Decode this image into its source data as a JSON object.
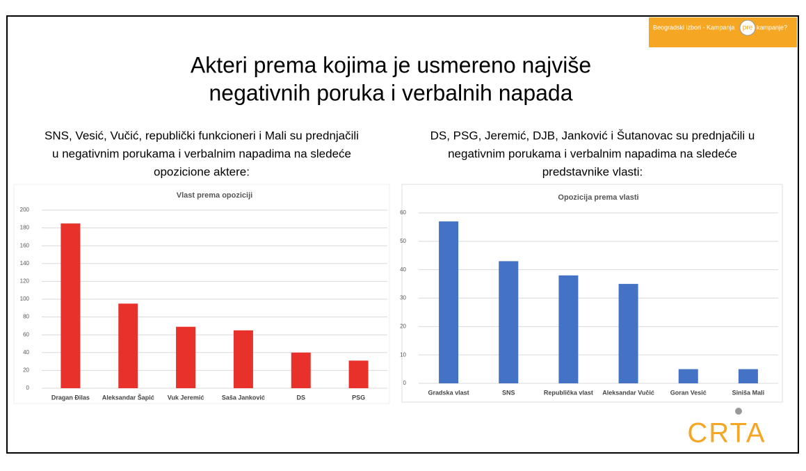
{
  "slide": {
    "title": [
      "Akteri prema kojima je usmereno najviše",
      "negativnih poruka i verbalnih napada"
    ],
    "banner": [
      "Beogradski izbori - Kampanja",
      "pre",
      "kampanje?"
    ],
    "left_caption": [
      "SNS, Vesić, Vučić, republički funkcioneri i Mali su prednjačili",
      "u negativnim porukama i verbalnim napadima na sledeće",
      "opozicione aktere:"
    ],
    "right_caption": [
      "DS, PSG, Jeremić, DJB, Janković i  Šutanovac su prednjačili u",
      "negativnim porukama i verbalnim napadima na sledeće",
      "predstavnike vlasti:"
    ],
    "logo": "CRTA"
  },
  "chart_data": [
    {
      "type": "bar",
      "title": "Vlast prema opoziciji",
      "categories": [
        "Dragan Đilas",
        "Aleksandar Šapić",
        "Vuk Jeremić",
        "Saša Janković",
        "DS",
        "PSG"
      ],
      "values": [
        185,
        95,
        69,
        65,
        40,
        31
      ],
      "color": "#e8312a",
      "ylim": [
        0,
        200
      ],
      "yticks": [
        0,
        20,
        40,
        60,
        80,
        100,
        120,
        140,
        160,
        180,
        200
      ],
      "grid": true
    },
    {
      "type": "bar",
      "title": "Opozicija prema vlasti",
      "categories": [
        "Gradska vlast",
        "SNS",
        "Republička vlast",
        "Aleksandar Vučić",
        "Goran Vesić",
        "Siniša Mali"
      ],
      "values": [
        57,
        43,
        38,
        35,
        5,
        5
      ],
      "color": "#4472c4",
      "ylim": [
        0,
        60
      ],
      "yticks": [
        0,
        10,
        20,
        30,
        40,
        50,
        60
      ],
      "grid": true
    }
  ]
}
